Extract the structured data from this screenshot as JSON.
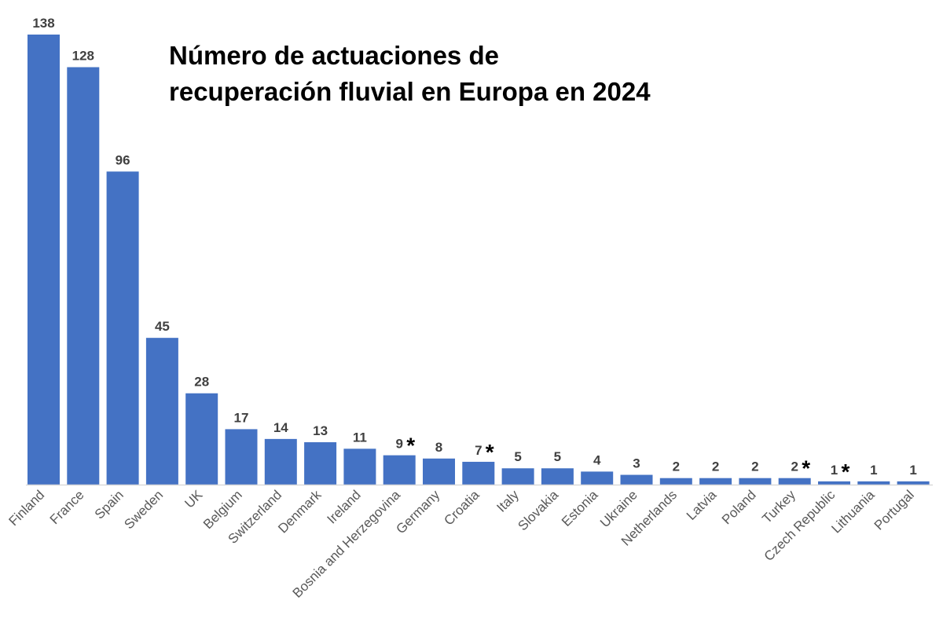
{
  "chart_data": {
    "type": "bar",
    "title_lines": [
      "Número de actuaciones de",
      "recuperación fluvial en Europa en 2024"
    ],
    "categories": [
      "Finland",
      "France",
      "Spain",
      "Sweden",
      "UK",
      "Belgium",
      "Switzerland",
      "Denmark",
      "Ireland",
      "Bosnia and Herzegovina",
      "Germany",
      "Croatia",
      "Italy",
      "Slovakia",
      "Estonia",
      "Ukraine",
      "Netherlands",
      "Latvia",
      "Poland",
      "Turkey",
      "Czech Republic",
      "Lithuania",
      "Portugal"
    ],
    "values": [
      138,
      128,
      96,
      45,
      28,
      17,
      14,
      13,
      11,
      9,
      8,
      7,
      5,
      5,
      4,
      3,
      2,
      2,
      2,
      2,
      1,
      1,
      1
    ],
    "annotations": [
      "",
      "",
      "",
      "",
      "",
      "",
      "",
      "",
      "",
      "*",
      "",
      "*",
      "",
      "",
      "",
      "",
      "",
      "",
      "",
      "*",
      "*",
      "",
      ""
    ],
    "ylim": [
      0,
      138
    ],
    "grid": false,
    "legend": "none",
    "colors": {
      "bar": "#4472C4",
      "baseline": "#D9D9D9"
    }
  }
}
